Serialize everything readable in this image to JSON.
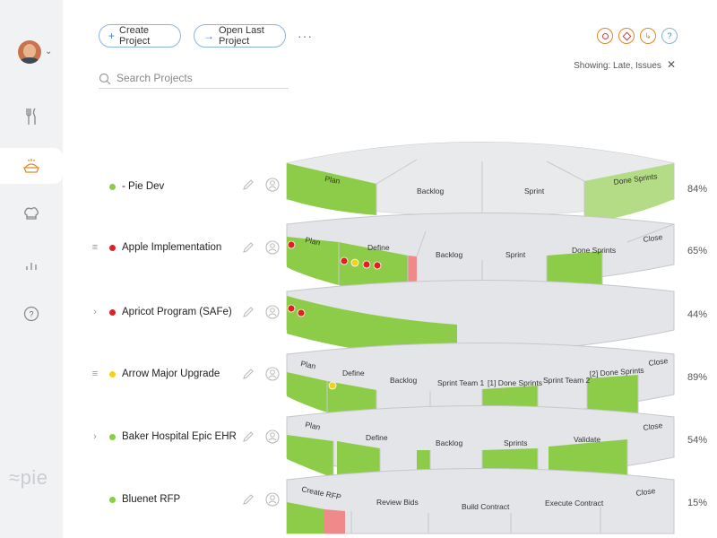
{
  "sidebar": {
    "items": [
      {
        "name": "utensils-icon",
        "active": false
      },
      {
        "name": "pie-icon",
        "active": true
      },
      {
        "name": "chef-hat-icon",
        "active": false
      },
      {
        "name": "bar-chart-icon",
        "active": false
      },
      {
        "name": "help-icon",
        "active": false
      }
    ],
    "logo": "≈pie"
  },
  "toolbar": {
    "create_label": "Create Project",
    "open_label": "Open Last Project",
    "more_label": "···"
  },
  "search": {
    "placeholder": "Search Projects"
  },
  "filters": {
    "showing_label": "Showing: Late, Issues",
    "icons": [
      "late-icon",
      "issues-icon",
      "clock-icon",
      "help-icon"
    ]
  },
  "colors": {
    "green": "#8ccc48",
    "light_green": "#b4dc86",
    "red": "#e84a4a",
    "pink": "#f08a8a",
    "yellow": "#f2d21a",
    "grey": "#dcdee1",
    "accent": "#3b7fc4",
    "orange": "#e08a2a"
  },
  "projects": [
    {
      "name": "- Pie Dev",
      "status": "green",
      "pct": "84%",
      "prefix": ""
    },
    {
      "name": "Apple Implementation",
      "status": "red",
      "pct": "65%",
      "prefix": "≡"
    },
    {
      "name": "Apricot Program (SAFe)",
      "status": "red",
      "pct": "44%",
      "prefix": "›"
    },
    {
      "name": "Arrow Major Upgrade",
      "status": "yellow",
      "pct": "89%",
      "prefix": "≡"
    },
    {
      "name": "Baker Hospital Epic EHR",
      "status": "green",
      "pct": "54%",
      "prefix": "›"
    },
    {
      "name": "Bluenet RFP",
      "status": "green",
      "pct": "15%",
      "prefix": ""
    }
  ],
  "layers": [
    {
      "labels": [
        "Plan",
        "Backlog",
        "Sprint",
        "Done Sprints"
      ]
    },
    {
      "labels": [
        "Plan",
        "Define",
        "Backlog",
        "Sprint",
        "Done Sprints",
        "Close"
      ]
    },
    {
      "labels": []
    },
    {
      "labels": [
        "Plan",
        "Define",
        "Backlog",
        "Sprint Team 1",
        "[1] Done Sprints",
        "Sprint Team 2",
        "[2] Done Sprints",
        "Close"
      ]
    },
    {
      "labels": [
        "Plan",
        "Define",
        "Backlog",
        "Sprints",
        "Validate",
        "Close"
      ]
    },
    {
      "labels": [
        "Create RFP",
        "Review Bids",
        "Build Contract",
        "Execute Contract",
        "Close"
      ]
    }
  ]
}
